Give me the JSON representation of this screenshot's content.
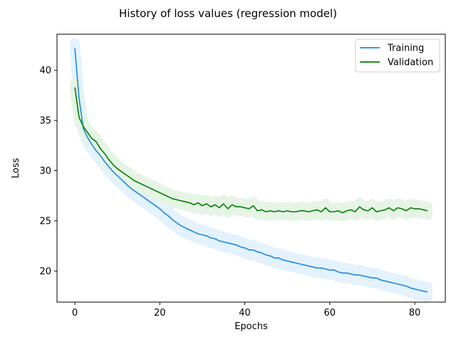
{
  "chart_data": {
    "type": "line",
    "title": "History of loss values (regression model)",
    "xlabel": "Epochs",
    "ylabel": "Loss",
    "xlim": [
      -4.2,
      87.2
    ],
    "ylim": [
      16.9,
      43.6
    ],
    "xticks": [
      0,
      20,
      40,
      60,
      80
    ],
    "yticks": [
      20,
      25,
      30,
      35,
      40
    ],
    "grid": false,
    "legend_position": "top-right",
    "series": [
      {
        "name": "Training",
        "color": "#1e88e5",
        "band_color": "#e3f2fd",
        "band_halfwidth": 0.5,
        "x": [
          0,
          1,
          2,
          3,
          4,
          5,
          6,
          7,
          8,
          9,
          10,
          11,
          12,
          13,
          14,
          15,
          16,
          17,
          18,
          19,
          20,
          21,
          22,
          23,
          24,
          25,
          26,
          27,
          28,
          29,
          30,
          31,
          32,
          33,
          34,
          35,
          36,
          37,
          38,
          39,
          40,
          41,
          42,
          43,
          44,
          45,
          46,
          47,
          48,
          49,
          50,
          51,
          52,
          53,
          54,
          55,
          56,
          57,
          58,
          59,
          60,
          61,
          62,
          63,
          64,
          65,
          66,
          67,
          68,
          69,
          70,
          71,
          72,
          73,
          74,
          75,
          76,
          77,
          78,
          79,
          80,
          81,
          82,
          83
        ],
        "values": [
          42.2,
          37.2,
          34.2,
          33.3,
          32.6,
          32.0,
          31.5,
          30.9,
          30.4,
          29.9,
          29.5,
          29.1,
          28.7,
          28.3,
          28.0,
          27.7,
          27.4,
          27.1,
          26.8,
          26.5,
          26.2,
          25.8,
          25.5,
          25.1,
          24.8,
          24.5,
          24.3,
          24.1,
          23.9,
          23.7,
          23.6,
          23.5,
          23.3,
          23.2,
          23.0,
          22.9,
          22.8,
          22.7,
          22.6,
          22.4,
          22.3,
          22.1,
          22.1,
          21.9,
          21.8,
          21.6,
          21.5,
          21.3,
          21.3,
          21.1,
          21.0,
          20.9,
          20.8,
          20.7,
          20.6,
          20.5,
          20.4,
          20.3,
          20.3,
          20.2,
          20.1,
          20.1,
          19.9,
          19.8,
          19.8,
          19.7,
          19.6,
          19.6,
          19.5,
          19.4,
          19.3,
          19.3,
          19.1,
          19.0,
          18.9,
          18.8,
          18.7,
          18.6,
          18.5,
          18.3,
          18.2,
          18.1,
          18.0,
          17.9
        ]
      },
      {
        "name": "Validation",
        "color": "#008000",
        "band_color": "#e6f4e6",
        "band_halfwidth": 0.4,
        "x": [
          0,
          1,
          2,
          3,
          4,
          5,
          6,
          7,
          8,
          9,
          10,
          11,
          12,
          13,
          14,
          15,
          16,
          17,
          18,
          19,
          20,
          21,
          22,
          23,
          24,
          25,
          26,
          27,
          28,
          29,
          30,
          31,
          32,
          33,
          34,
          35,
          36,
          37,
          38,
          39,
          40,
          41,
          42,
          43,
          44,
          45,
          46,
          47,
          48,
          49,
          50,
          51,
          52,
          53,
          54,
          55,
          56,
          57,
          58,
          59,
          60,
          61,
          62,
          63,
          64,
          65,
          66,
          67,
          68,
          69,
          70,
          71,
          72,
          73,
          74,
          75,
          76,
          77,
          78,
          79,
          80,
          81,
          82,
          83
        ],
        "values": [
          38.3,
          35.3,
          34.4,
          33.8,
          33.2,
          32.9,
          32.2,
          31.7,
          31.1,
          30.6,
          30.2,
          29.9,
          29.6,
          29.3,
          29.0,
          28.8,
          28.6,
          28.4,
          28.2,
          28.0,
          27.8,
          27.6,
          27.4,
          27.2,
          27.1,
          27.0,
          26.9,
          26.8,
          26.6,
          26.8,
          26.5,
          26.7,
          26.4,
          26.6,
          26.3,
          26.7,
          26.2,
          26.6,
          26.4,
          26.4,
          26.3,
          26.2,
          26.5,
          26.0,
          26.1,
          25.9,
          26.0,
          25.9,
          26.0,
          25.9,
          26.0,
          25.9,
          25.9,
          26.0,
          26.0,
          25.9,
          26.0,
          26.1,
          25.9,
          26.3,
          25.9,
          25.9,
          26.0,
          25.8,
          26.0,
          26.1,
          25.9,
          26.4,
          26.1,
          26.0,
          26.3,
          25.9,
          26.0,
          26.1,
          26.3,
          26.0,
          26.3,
          26.2,
          26.0,
          26.3,
          26.2,
          26.2,
          26.1,
          26.0
        ]
      }
    ]
  }
}
